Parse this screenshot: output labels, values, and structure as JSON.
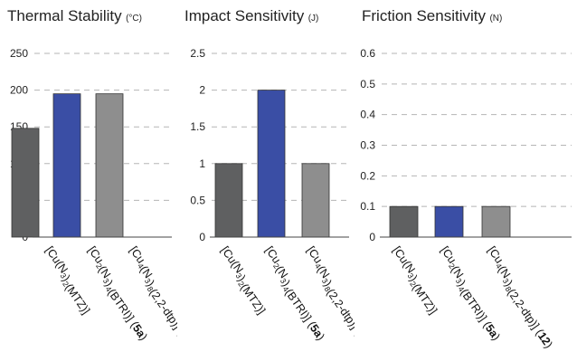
{
  "chart_data": [
    {
      "type": "bar",
      "title": "Thermal Stability",
      "unit": "(°C)",
      "categories": [
        "[Cu(N3)2(MTZ)]",
        "[Cu2(N3)4(BTRI)] (5a)",
        "[Cu4(N3)8(2,2-dtp)] (12)"
      ],
      "values": [
        148,
        195,
        195
      ],
      "ylim": [
        0,
        250
      ],
      "yticks": [
        "0",
        "50",
        "100",
        "150",
        "200",
        "250"
      ],
      "grid": true,
      "colors": [
        "#5f6061",
        "#3a4ea5",
        "#8e8e8e"
      ]
    },
    {
      "type": "bar",
      "title": "Impact Sensitivity",
      "unit": "(J)",
      "categories": [
        "[Cu(N3)2(MTZ)]",
        "[Cu2(N3)4(BTRI)] (5a)",
        "[Cu4(N3)8(2,2-dtp)] (12)"
      ],
      "values": [
        1,
        2,
        1
      ],
      "ylim": [
        0,
        2.5
      ],
      "yticks": [
        "0",
        "0.5",
        "1",
        "1.5",
        "2",
        "2.5"
      ],
      "grid": true,
      "colors": [
        "#5f6061",
        "#3a4ea5",
        "#8e8e8e"
      ]
    },
    {
      "type": "bar",
      "title": "Friction Sensitivity",
      "unit": "(N)",
      "categories": [
        "[Cu(N3)2(MTZ)]",
        "[Cu2(N3)4(BTRI)] (5a)",
        "[Cu4(N3)8(2,2-dtp)] (12)"
      ],
      "values": [
        0.1,
        0.1,
        0.1
      ],
      "ylim": [
        0,
        0.6
      ],
      "yticks": [
        "0",
        "0.1",
        "0.2",
        "0.3",
        "0.4",
        "0.5",
        "0.6"
      ],
      "grid": true,
      "colors": [
        "#5f6061",
        "#3a4ea5",
        "#8e8e8e"
      ]
    }
  ]
}
